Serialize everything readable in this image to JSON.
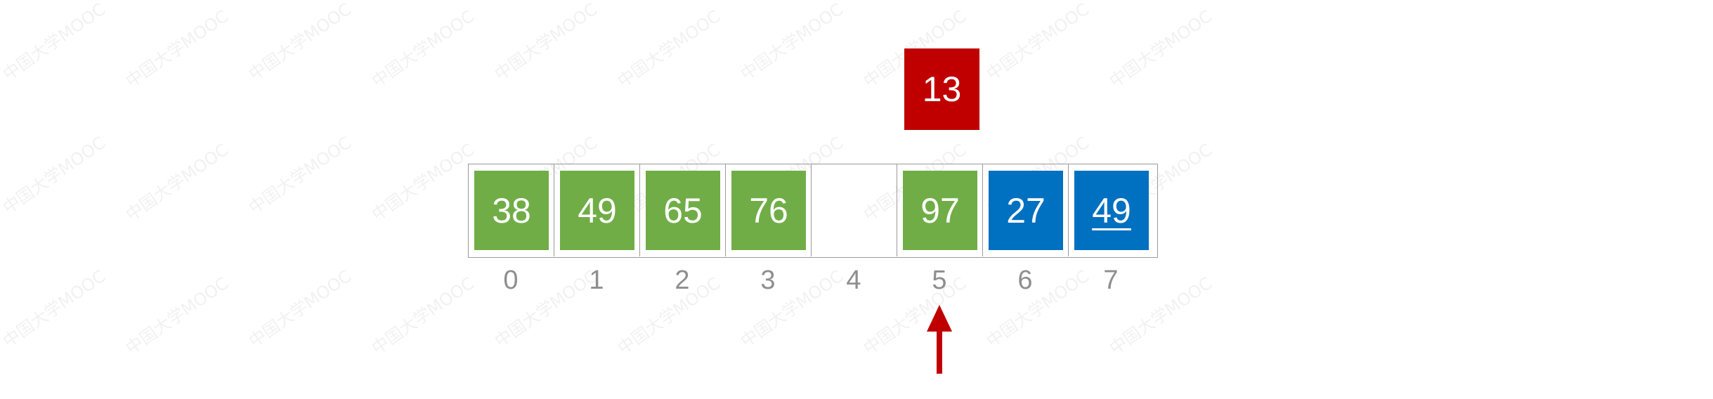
{
  "watermark_text": "中国大学MOOC",
  "key": {
    "value": "13",
    "color": "#c00000"
  },
  "array": {
    "cells": [
      {
        "index": "0",
        "value": "38",
        "color": "#70ad47",
        "underlined": false
      },
      {
        "index": "1",
        "value": "49",
        "color": "#70ad47",
        "underlined": false
      },
      {
        "index": "2",
        "value": "65",
        "color": "#70ad47",
        "underlined": false
      },
      {
        "index": "3",
        "value": "76",
        "color": "#70ad47",
        "underlined": false
      },
      {
        "index": "4",
        "value": "",
        "color": "",
        "underlined": false
      },
      {
        "index": "5",
        "value": "97",
        "color": "#70ad47",
        "underlined": false
      },
      {
        "index": "6",
        "value": "27",
        "color": "#0070c0",
        "underlined": false
      },
      {
        "index": "7",
        "value": "49",
        "color": "#0070c0",
        "underlined": true
      }
    ],
    "border_color": "#9a9a9a",
    "index_color": "#8e8e8e"
  },
  "pointer": {
    "target_index": "5",
    "color": "#c00000",
    "icon": "up-arrow-icon"
  }
}
